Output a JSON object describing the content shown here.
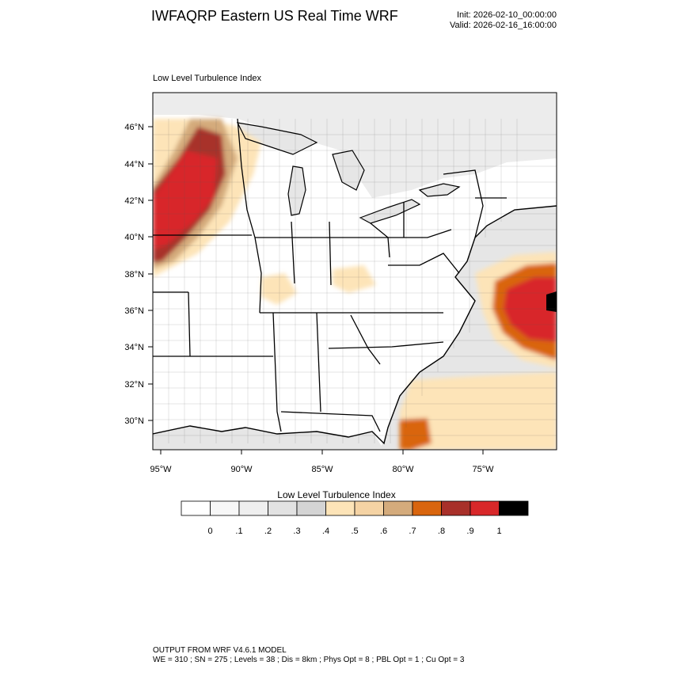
{
  "header": {
    "title": "IWFAQRP Eastern US Real Time WRF",
    "init": "Init: 2026-02-10_00:00:00",
    "valid": "Valid: 2026-02-16_16:00:00"
  },
  "map": {
    "subtitle": "Low Level Turbulence Index",
    "lat_labels": [
      "46°N",
      "44°N",
      "42°N",
      "40°N",
      "38°N",
      "36°N",
      "34°N",
      "32°N",
      "30°N"
    ],
    "lon_labels": [
      "95°W",
      "90°W",
      "85°W",
      "80°W",
      "75°W"
    ],
    "colors": {
      "land": "#ffffff",
      "water": "#e6e6e6",
      "light_orange": "#fde4b8",
      "tan": "#f5d3a4",
      "brown": "#d4ab7c",
      "orange": "#d9650e",
      "dark_red": "#a8302a",
      "red": "#d8282a"
    }
  },
  "colorbar": {
    "title": "Low Level Turbulence Index",
    "labels": [
      "0",
      ".1",
      ".2",
      ".3",
      ".4",
      ".5",
      ".6",
      ".7",
      ".8",
      ".9",
      "1"
    ],
    "colors": [
      "#ffffff",
      "#f7f7f7",
      "#efefef",
      "#e2e2e2",
      "#d4d4d4",
      "#fde4b8",
      "#f5d3a4",
      "#d4ab7c",
      "#d9650e",
      "#a8302a",
      "#d8282a",
      "#000000"
    ]
  },
  "footer": {
    "line1": "OUTPUT FROM WRF V4.6.1 MODEL",
    "line2": "WE = 310 ; SN = 275 ; Levels = 38 ; Dis = 8km ; Phys Opt = 8 ; PBL Opt = 1 ; Cu Opt = 3"
  }
}
